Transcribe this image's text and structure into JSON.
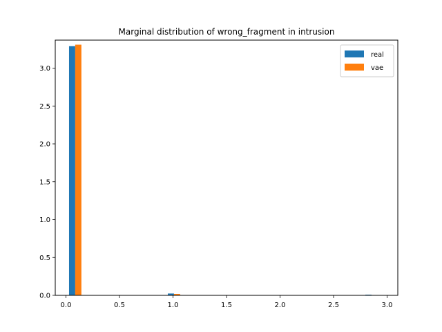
{
  "chart_data": {
    "type": "bar",
    "title": "Marginal distribution of wrong_fragment in intrusion",
    "xlabel": "",
    "ylabel": "",
    "xlim": [
      -0.1,
      3.1
    ],
    "ylim": [
      0,
      3.37
    ],
    "xticks": [
      0.0,
      0.5,
      1.0,
      1.5,
      2.0,
      2.5,
      3.0
    ],
    "xtick_labels": [
      "0.0",
      "0.5",
      "1.0",
      "1.5",
      "2.0",
      "2.5",
      "3.0"
    ],
    "yticks": [
      0.0,
      0.5,
      1.0,
      1.5,
      2.0,
      2.5,
      3.0
    ],
    "ytick_labels": [
      "0.0",
      "0.5",
      "1.0",
      "1.5",
      "2.0",
      "2.5",
      "3.0"
    ],
    "bin_width": 0.1154,
    "bin_starts": [
      0.0288,
      0.9515,
      2.7969
    ],
    "series": [
      {
        "name": "real",
        "color": "#1f77b4",
        "values": [
          3.29,
          0.024,
          0.009
        ]
      },
      {
        "name": "vae",
        "color": "#ff7f0e",
        "values": [
          3.31,
          0.018,
          0.0
        ]
      }
    ],
    "legend": {
      "placement": "top-right"
    },
    "grid": false
  }
}
